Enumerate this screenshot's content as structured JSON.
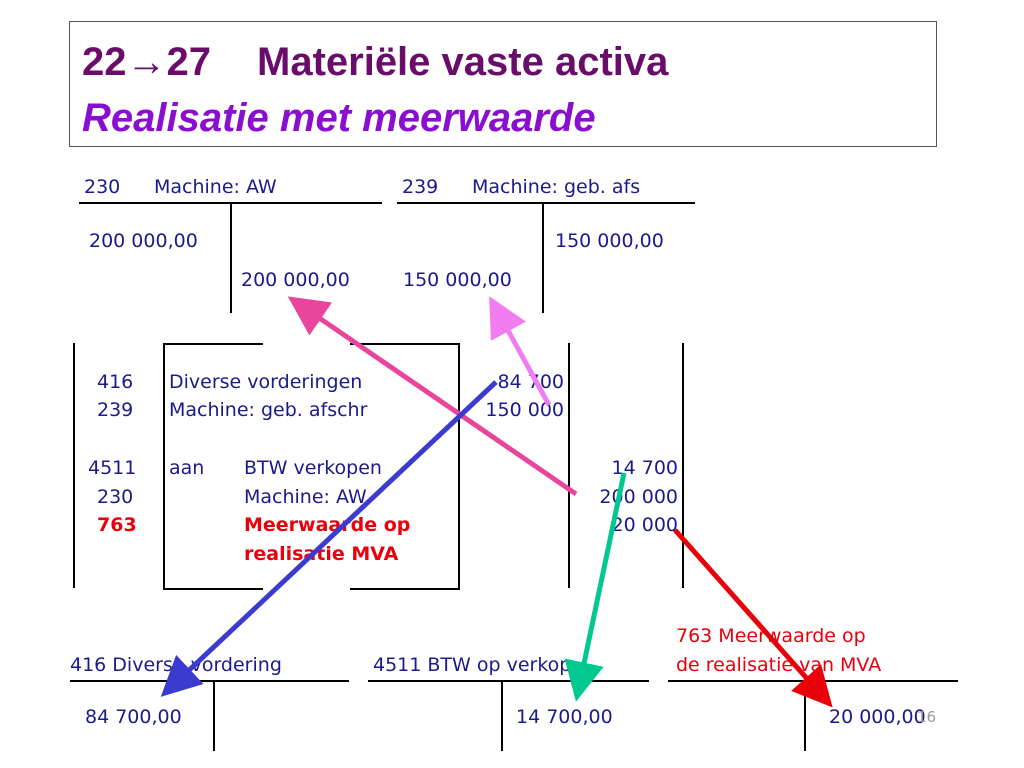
{
  "title": {
    "num_from": "22",
    "arrow": "→",
    "num_to": "27",
    "main": "Materiële vaste activa",
    "subtitle": "Realisatie met meerwaarde"
  },
  "accounts_top": {
    "a230": {
      "code": "230",
      "name": "Machine: AW",
      "debit": "200 000,00",
      "credit": "200 000,00"
    },
    "a239": {
      "code": "239",
      "name": "Machine: geb. afs",
      "debit": "150 000,00",
      "credit": "150 000,00"
    }
  },
  "journal": {
    "rows": [
      {
        "code": "416",
        "prefix": "",
        "desc": "Diverse vorderingen",
        "debit": "84 700",
        "credit": ""
      },
      {
        "code": "239",
        "prefix": "",
        "desc": "Machine: geb. afschr",
        "debit": "150 000",
        "credit": ""
      },
      {
        "code": "4511",
        "prefix": "aan",
        "desc": "BTW verkopen",
        "debit": "",
        "credit": "14 700"
      },
      {
        "code": "230",
        "prefix": "",
        "desc": "Machine: AW",
        "debit": "",
        "credit": "200 000"
      },
      {
        "code": "763",
        "prefix": "",
        "desc": "Meerwaarde op",
        "desc2": "realisatie MVA",
        "debit": "",
        "credit": "20 000"
      }
    ]
  },
  "accounts_bottom": {
    "a416": {
      "label": "416 Diverse vordering",
      "amount": "84 700,00"
    },
    "a4511": {
      "label": "4511  BTW op verkop",
      "amount": "14 700,00"
    },
    "a763": {
      "label_line1": "763  Meerwaarde op",
      "label_line2": "de realisatie van MVA",
      "amount": "20 000,00"
    }
  },
  "page_number": "16",
  "colors": {
    "title": "#6a0d6a",
    "subtitle": "#8a0ed0",
    "text": "#1a1a8c",
    "highlight": "#e8000b",
    "arrow_pink": "#e8469c",
    "arrow_violet": "#f07cf0",
    "arrow_blue": "#3b3bd0",
    "arrow_green": "#00c890",
    "arrow_red": "#e8000b"
  }
}
